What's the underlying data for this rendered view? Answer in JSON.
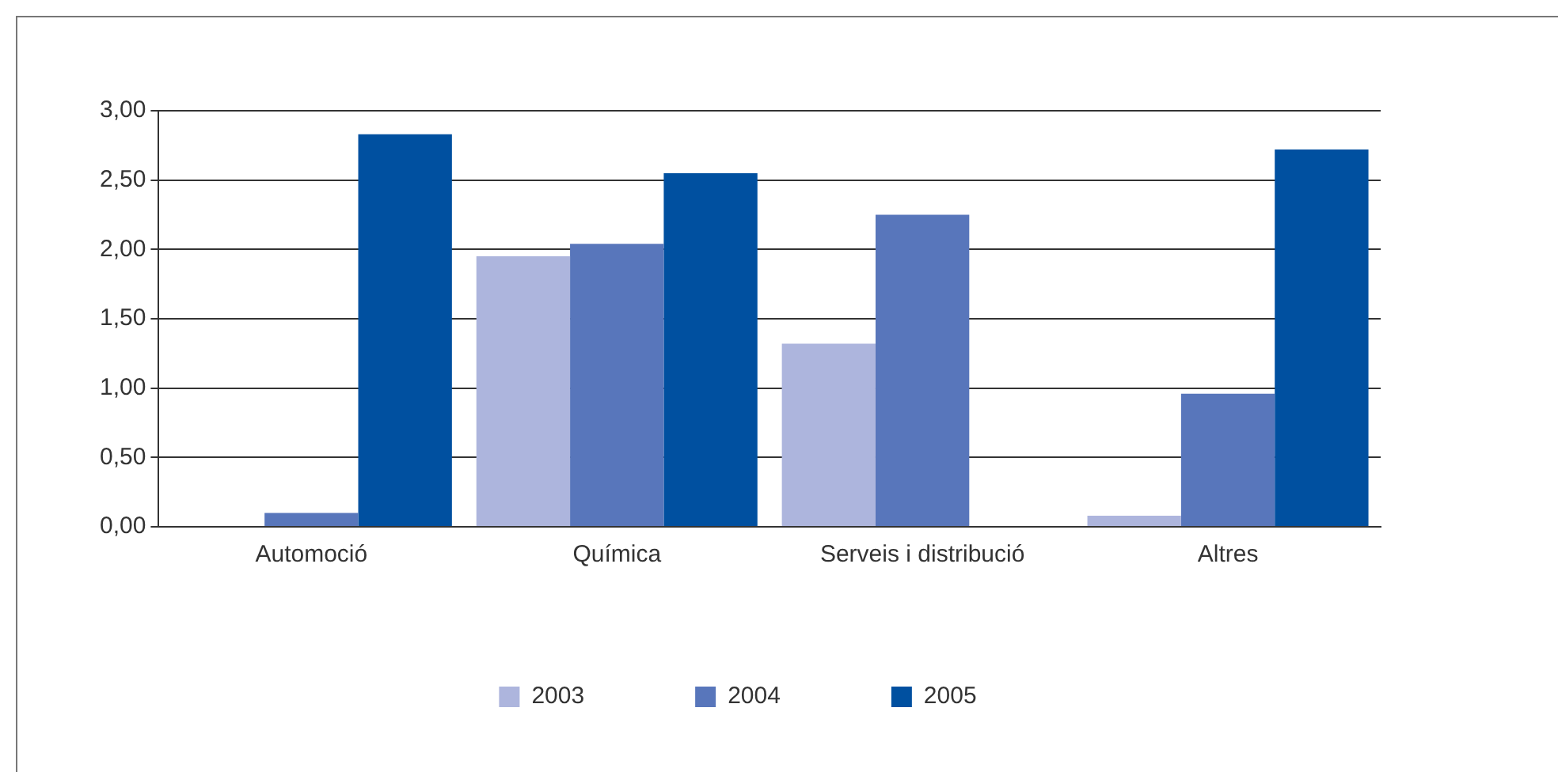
{
  "chart_data": {
    "type": "bar",
    "categories": [
      "Automoció",
      "Química",
      "Serveis i distribució",
      "Altres"
    ],
    "series": [
      {
        "name": "2003",
        "color": "#adb5dd",
        "values": [
          null,
          1.95,
          1.32,
          0.08
        ]
      },
      {
        "name": "2004",
        "color": "#5876bb",
        "values": [
          0.1,
          2.04,
          2.25,
          0.96
        ]
      },
      {
        "name": "2005",
        "color": "#0050a0",
        "values": [
          2.83,
          2.55,
          null,
          2.72
        ]
      }
    ],
    "ylim": [
      0,
      3
    ],
    "yticks": [
      {
        "value": 0,
        "label": "0,00"
      },
      {
        "value": 0.5,
        "label": "0,50"
      },
      {
        "value": 1,
        "label": "1,00"
      },
      {
        "value": 1.5,
        "label": "1,50"
      },
      {
        "value": 2,
        "label": "2,00"
      },
      {
        "value": 2.5,
        "label": "2,50"
      },
      {
        "value": 3,
        "label": "3,00"
      }
    ],
    "grid": "y",
    "legend": "bottom"
  }
}
